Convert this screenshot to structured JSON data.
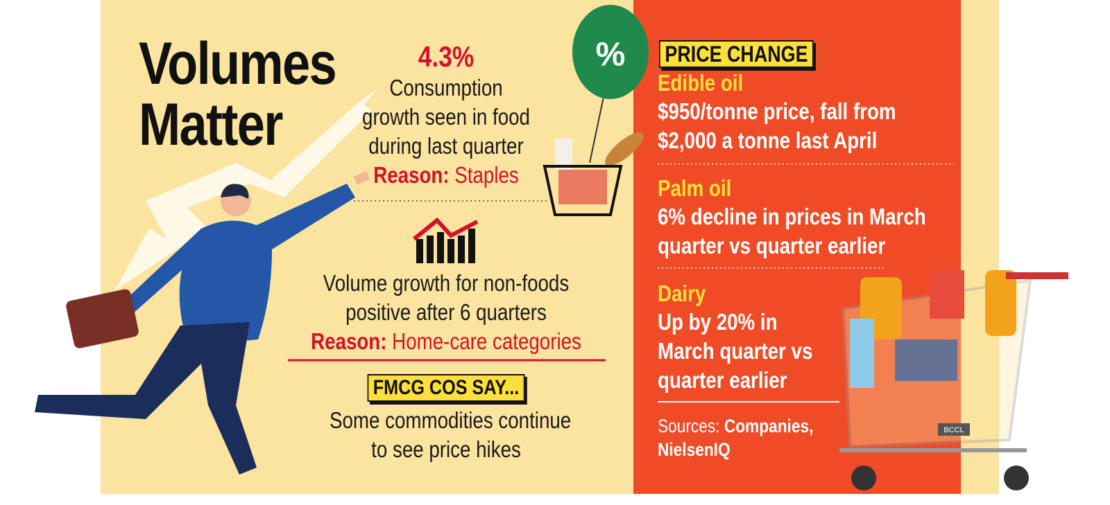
{
  "header": {
    "title_lines": [
      "Volumes",
      "Matter"
    ]
  },
  "food_stat": {
    "value": "4.3%",
    "lines": [
      "Consumption",
      "growth seen in food",
      "during last quarter"
    ],
    "reason_label": "Reason:",
    "reason": "Staples"
  },
  "nonfood_stat": {
    "lines": [
      "Volume growth for non-foods",
      "positive after 6 quarters"
    ],
    "reason_label": "Reason:",
    "reason": "Home-care categories"
  },
  "fmcg": {
    "heading": "FMCG COS SAY...",
    "lines": [
      "Some commodities continue",
      "to see price hikes"
    ]
  },
  "price_change": {
    "heading": "PRICE CHANGE",
    "items": [
      {
        "name": "Edible oil",
        "lines": [
          "$950/tonne price, fall from",
          "$2,000 a tonne last April"
        ]
      },
      {
        "name": "Palm oil",
        "lines": [
          "6% decline in prices in March",
          "quarter vs quarter earlier"
        ]
      },
      {
        "name": "Dairy",
        "lines": [
          "Up by 20% in",
          "March quarter vs",
          "quarter earlier"
        ]
      }
    ]
  },
  "sources": {
    "label": "Sources:",
    "items": [
      "Companies,",
      "NielsenIQ"
    ]
  },
  "balloon_label": "%",
  "watermark": "BCCL"
}
